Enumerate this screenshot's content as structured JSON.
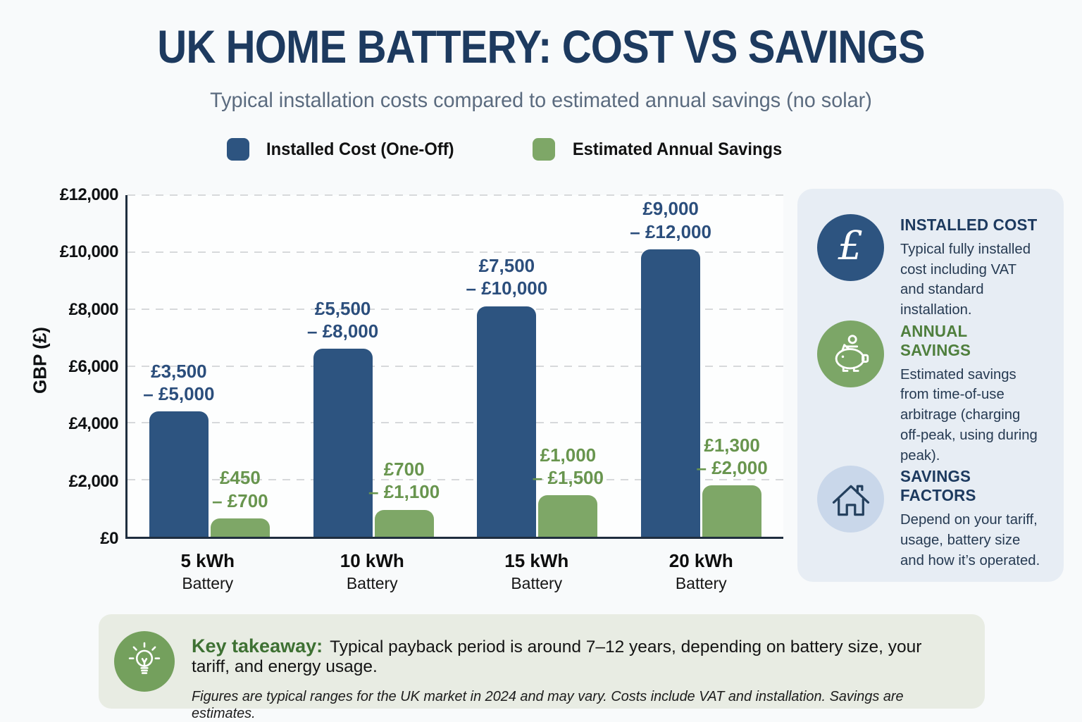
{
  "header": {
    "title": "UK HOME BATTERY: COST VS SAVINGS",
    "subtitle": "Typical installation costs compared to estimated annual savings (no solar)"
  },
  "legend": [
    {
      "label": "Installed Cost (One-Off)",
      "color": "#2d5480"
    },
    {
      "label": "Estimated Annual Savings",
      "color": "#7ea767"
    }
  ],
  "chart_data": {
    "type": "bar",
    "title": "UK Home Battery: Cost vs Savings",
    "xlabel": "",
    "ylabel": "GBP (£)",
    "ylim": [
      0,
      12000
    ],
    "grid": "dashed-horizontal",
    "legend_position": "top",
    "yticks": [
      "£0",
      "£2,000",
      "£4,000",
      "£6,000",
      "£8,000",
      "£10,000",
      "£12,000"
    ],
    "categories": [
      {
        "line1": "5 kWh",
        "line2": "Battery"
      },
      {
        "line1": "10 kWh",
        "line2": "Battery"
      },
      {
        "line1": "15 kWh",
        "line2": "Battery"
      },
      {
        "line1": "20 kWh",
        "line2": "Battery"
      }
    ],
    "series": [
      {
        "key": "installed-cost",
        "name": "Installed Cost (One-Off)",
        "color": "#2d5480",
        "label_color": "#2b4e7c",
        "values": [
          4400,
          6600,
          8100,
          10100
        ],
        "ranges": [
          [
            3500,
            5000
          ],
          [
            5500,
            8000
          ],
          [
            7500,
            10000
          ],
          [
            9000,
            12000
          ]
        ],
        "labels": [
          [
            "£3,500",
            "– £5,000"
          ],
          [
            "£5,500",
            "– £8,000"
          ],
          [
            "£7,500",
            "– £10,000"
          ],
          [
            "£9,000",
            "– £12,000"
          ]
        ]
      },
      {
        "key": "annual-savings",
        "name": "Estimated Annual Savings",
        "color": "#7ea767",
        "label_color": "#68954e",
        "values": [
          650,
          950,
          1450,
          1800
        ],
        "ranges": [
          [
            450,
            700
          ],
          [
            700,
            1100
          ],
          [
            1000,
            1500
          ],
          [
            1300,
            2000
          ]
        ],
        "labels": [
          [
            "£450",
            "– £700"
          ],
          [
            "£700",
            "– £1,100"
          ],
          [
            "£1,000",
            "– £1,500"
          ],
          [
            "£1,300",
            "– £2,000"
          ]
        ]
      }
    ]
  },
  "sidebar": {
    "cards": [
      {
        "icon": "pound-icon",
        "circle_color": "#2d5480",
        "heading": "INSTALLED COST",
        "heading_color": "#1d3a5f",
        "body": "Typical fully installed cost including VAT and standard installation."
      },
      {
        "icon": "piggy-bank-icon",
        "circle_color": "#7ca667",
        "heading": "ANNUAL SAVINGS",
        "heading_color": "#4f7f3d",
        "body": "Estimated savings from time-of-use arbitrage (charging off-peak, using during peak)."
      },
      {
        "icon": "house-icon",
        "circle_color": "#c9d7ea",
        "heading": "SAVINGS FACTORS",
        "heading_color": "#1d3a5f",
        "body": "Depend on your tariff, usage, battery size and how it’s operated."
      }
    ]
  },
  "takeaway": {
    "icon": "lightbulb-icon",
    "circle_color": "#74a05d",
    "label": "Key takeaway:",
    "text": "Typical payback period is around 7–12 years, depending on battery size, your tariff, and energy usage.",
    "footnote": "Figures are typical ranges for the UK market in 2024 and may vary. Costs include VAT and installation. Savings are estimates."
  },
  "colors": {
    "page_background": "#f8fafb",
    "plot_background": "#fdfefe",
    "axis": "#1f2e3f",
    "gridline": "#d7d9db",
    "title_navy": "#1d3a5f",
    "subtitle_gray": "#5b6b7f",
    "sidebar_background": "#e7edf4",
    "takeaway_background": "#e8ece3"
  }
}
